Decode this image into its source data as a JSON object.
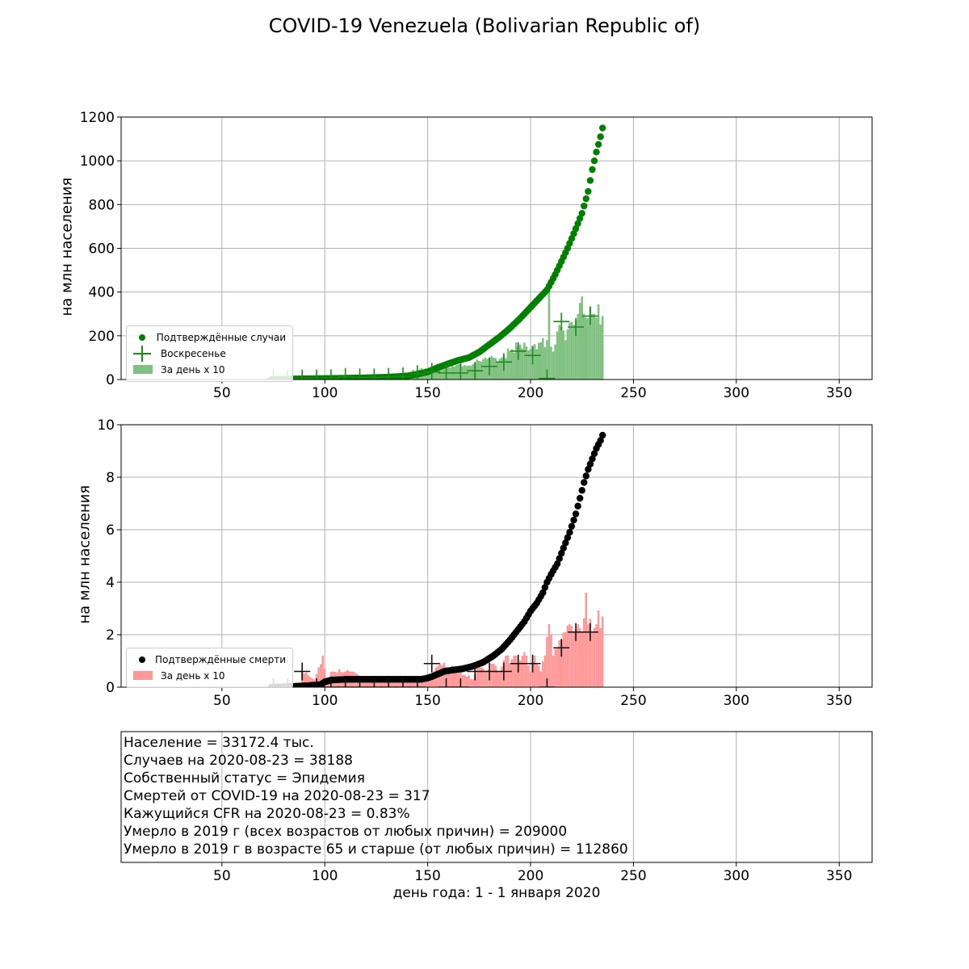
{
  "figure": {
    "suptitle": "COVID-19 Venezuela (Bolivarian Republic of)",
    "xlabel": "день года: 1 - 1 января 2020"
  },
  "colors": {
    "cases": "#008000",
    "cases_bars": "#80c080",
    "deaths": "#000000",
    "deaths_bars": "#ff9999",
    "grid": "#b0b0b0"
  },
  "chart_data": [
    {
      "type": "scatter",
      "panel": "cases",
      "ylabel": "на млн населения",
      "xlim": [
        1,
        366
      ],
      "ylim": [
        0,
        1200
      ],
      "xticks": [
        50,
        100,
        150,
        200,
        250,
        300,
        350
      ],
      "yticks": [
        0,
        200,
        400,
        600,
        800,
        1000,
        1200
      ],
      "grid": true,
      "legend_position": "lower-left",
      "legend": [
        "Подтверждённые случаи",
        "Воскресенье",
        "За день x 10"
      ],
      "cumulative_points": [
        [
          74,
          0.3
        ],
        [
          80,
          1.5
        ],
        [
          90,
          3.5
        ],
        [
          100,
          4.6
        ],
        [
          110,
          6
        ],
        [
          120,
          8
        ],
        [
          130,
          10.5
        ],
        [
          140,
          16
        ],
        [
          145,
          24
        ],
        [
          150,
          35
        ],
        [
          155,
          55
        ],
        [
          160,
          72
        ],
        [
          165,
          88
        ],
        [
          170,
          100
        ],
        [
          175,
          125
        ],
        [
          180,
          160
        ],
        [
          185,
          195
        ],
        [
          190,
          235
        ],
        [
          195,
          280
        ],
        [
          200,
          330
        ],
        [
          205,
          380
        ],
        [
          208,
          410
        ],
        [
          210,
          445
        ],
        [
          212,
          480
        ],
        [
          215,
          540
        ],
        [
          218,
          600
        ],
        [
          220,
          645
        ],
        [
          222,
          690
        ],
        [
          225,
          760
        ],
        [
          228,
          860
        ],
        [
          230,
          960
        ],
        [
          232,
          1040
        ],
        [
          234,
          1110
        ],
        [
          235,
          1150
        ]
      ],
      "daily_x10_points": [
        [
          75,
          10
        ],
        [
          90,
          10
        ],
        [
          100,
          10
        ],
        [
          110,
          14
        ],
        [
          120,
          15
        ],
        [
          130,
          20
        ],
        [
          140,
          30
        ],
        [
          145,
          45
        ],
        [
          150,
          50
        ],
        [
          155,
          60
        ],
        [
          160,
          55
        ],
        [
          165,
          70
        ],
        [
          170,
          65
        ],
        [
          175,
          85
        ],
        [
          180,
          100
        ],
        [
          185,
          95
        ],
        [
          190,
          130
        ],
        [
          195,
          160
        ],
        [
          200,
          140
        ],
        [
          205,
          170
        ],
        [
          208,
          180
        ],
        [
          209,
          400
        ],
        [
          210,
          150
        ],
        [
          212,
          160
        ],
        [
          213,
          220
        ],
        [
          215,
          240
        ],
        [
          217,
          180
        ],
        [
          219,
          260
        ],
        [
          221,
          250
        ],
        [
          223,
          300
        ],
        [
          224,
          350
        ],
        [
          225,
          380
        ],
        [
          226,
          300
        ],
        [
          228,
          280
        ],
        [
          230,
          300
        ],
        [
          235,
          290
        ]
      ],
      "sunday_points": [
        [
          75,
          2
        ],
        [
          82,
          3
        ],
        [
          89,
          5
        ],
        [
          96,
          5
        ],
        [
          103,
          6
        ],
        [
          110,
          12
        ],
        [
          117,
          10
        ],
        [
          124,
          10
        ],
        [
          131,
          12
        ],
        [
          138,
          15
        ],
        [
          145,
          25
        ],
        [
          152,
          35
        ],
        [
          159,
          30
        ],
        [
          166,
          30
        ],
        [
          173,
          40
        ],
        [
          180,
          60
        ],
        [
          187,
          80
        ],
        [
          194,
          130
        ],
        [
          201,
          110
        ],
        [
          208,
          5
        ],
        [
          215,
          265
        ],
        [
          222,
          240
        ],
        [
          229,
          290
        ]
      ]
    },
    {
      "type": "scatter",
      "panel": "deaths",
      "ylabel": "на млн населения",
      "xlim": [
        1,
        366
      ],
      "ylim": [
        0,
        10
      ],
      "xticks": [
        50,
        100,
        150,
        200,
        250,
        300,
        350
      ],
      "yticks": [
        0,
        2,
        4,
        6,
        8,
        10
      ],
      "grid": true,
      "legend_position": "lower-left",
      "legend": [
        "Подтверждённые смерти",
        "За день x 10"
      ],
      "cumulative_points": [
        [
          74,
          0
        ],
        [
          85,
          0.03
        ],
        [
          92,
          0.06
        ],
        [
          98,
          0.1
        ],
        [
          100,
          0.2
        ],
        [
          103,
          0.27
        ],
        [
          110,
          0.3
        ],
        [
          120,
          0.3
        ],
        [
          130,
          0.3
        ],
        [
          140,
          0.3
        ],
        [
          147,
          0.3
        ],
        [
          150,
          0.35
        ],
        [
          152,
          0.4
        ],
        [
          155,
          0.5
        ],
        [
          158,
          0.6
        ],
        [
          162,
          0.65
        ],
        [
          167,
          0.7
        ],
        [
          172,
          0.8
        ],
        [
          177,
          0.95
        ],
        [
          182,
          1.2
        ],
        [
          186,
          1.45
        ],
        [
          190,
          1.8
        ],
        [
          193,
          2.1
        ],
        [
          197,
          2.5
        ],
        [
          200,
          2.9
        ],
        [
          203,
          3.2
        ],
        [
          206,
          3.6
        ],
        [
          208,
          4.0
        ],
        [
          210,
          4.3
        ],
        [
          213,
          4.7
        ],
        [
          216,
          5.3
        ],
        [
          219,
          5.9
        ],
        [
          222,
          6.6
        ],
        [
          224,
          7.2
        ],
        [
          226,
          7.8
        ],
        [
          228,
          8.3
        ],
        [
          230,
          8.7
        ],
        [
          232,
          9.1
        ],
        [
          234,
          9.4
        ],
        [
          235,
          9.6
        ]
      ],
      "daily_x10_points": [
        [
          89,
          0.6
        ],
        [
          95,
          0.3
        ],
        [
          99,
          1.2
        ],
        [
          101,
          0.3
        ],
        [
          104,
          0.6
        ],
        [
          113,
          0.6
        ],
        [
          120,
          0.3
        ],
        [
          150,
          0.3
        ],
        [
          153,
          0.6
        ],
        [
          156,
          0.9
        ],
        [
          165,
          0.6
        ],
        [
          172,
          0.3
        ],
        [
          175,
          0.9
        ],
        [
          178,
          0.6
        ],
        [
          182,
          0.9
        ],
        [
          185,
          0.6
        ],
        [
          188,
          1.2
        ],
        [
          190,
          0.9
        ],
        [
          192,
          1.2
        ],
        [
          194,
          0.9
        ],
        [
          196,
          1.2
        ],
        [
          198,
          1.2
        ],
        [
          200,
          0.6
        ],
        [
          202,
          1.2
        ],
        [
          205,
          0.6
        ],
        [
          207,
          1.2
        ],
        [
          209,
          2.4
        ],
        [
          211,
          1.2
        ],
        [
          213,
          1.5
        ],
        [
          215,
          1.8
        ],
        [
          217,
          2.1
        ],
        [
          219,
          2.4
        ],
        [
          221,
          2.1
        ],
        [
          223,
          2.4
        ],
        [
          225,
          2.1
        ],
        [
          227,
          3.6
        ],
        [
          228,
          2.4
        ],
        [
          230,
          2.1
        ],
        [
          232,
          2.4
        ],
        [
          235,
          2.7
        ]
      ],
      "sunday_points": [
        [
          75,
          0
        ],
        [
          82,
          0
        ],
        [
          89,
          0.6
        ],
        [
          96,
          0
        ],
        [
          103,
          0
        ],
        [
          110,
          0
        ],
        [
          117,
          0
        ],
        [
          124,
          0
        ],
        [
          131,
          0
        ],
        [
          138,
          0
        ],
        [
          145,
          0
        ],
        [
          152,
          0.9
        ],
        [
          159,
          0
        ],
        [
          166,
          0
        ],
        [
          173,
          0.6
        ],
        [
          180,
          0.6
        ],
        [
          187,
          0.6
        ],
        [
          194,
          0.9
        ],
        [
          201,
          0.9
        ],
        [
          208,
          0
        ],
        [
          215,
          1.5
        ],
        [
          222,
          2.1
        ],
        [
          229,
          2.1
        ]
      ]
    }
  ],
  "info_panel": {
    "xlim": [
      1,
      366
    ],
    "xticks": [
      50,
      100,
      150,
      200,
      250,
      300,
      350
    ],
    "lines": [
      "Население = 33172.4 тыс.",
      "Случаев на 2020-08-23 = 38188",
      "Собственный статус = Эпидемия",
      "Смертей от COVID-19 на 2020-08-23 = 317",
      "Кажущийся CFR на 2020-08-23 = 0.83%",
      "Умерло в 2019 г (всех возрастов от любых причин) = 209000",
      "Умерло в 2019 г в возрасте 65 и старше (от любых причин) = 112860"
    ]
  }
}
